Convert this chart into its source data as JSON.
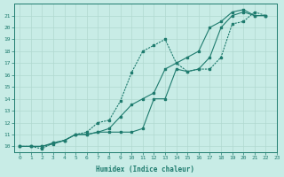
{
  "xlabel": "Humidex (Indice chaleur)",
  "xlim": [
    -0.5,
    23
  ],
  "ylim": [
    9.5,
    22
  ],
  "xticks": [
    0,
    1,
    2,
    3,
    4,
    5,
    6,
    7,
    8,
    9,
    10,
    11,
    12,
    13,
    14,
    15,
    16,
    17,
    18,
    19,
    20,
    21,
    22,
    23
  ],
  "yticks": [
    10,
    11,
    12,
    13,
    14,
    15,
    16,
    17,
    18,
    19,
    20,
    21
  ],
  "bg_color": "#c8ece6",
  "line_color": "#1e7b6e",
  "grid_color": "#b0d8d0",
  "line1_x": [
    0,
    1,
    2,
    3,
    4,
    5,
    6,
    7,
    8,
    9,
    10,
    11,
    12,
    13,
    14,
    15,
    16,
    17,
    18,
    19,
    20,
    21,
    22
  ],
  "line1_y": [
    10,
    10,
    10,
    10.3,
    10.5,
    11,
    11,
    11.2,
    11.2,
    11.2,
    11.2,
    11.5,
    14,
    14,
    16.5,
    16.3,
    16.5,
    17.5,
    20,
    21,
    21.3,
    21,
    21
  ],
  "line2_x": [
    0,
    1,
    2,
    3,
    4,
    5,
    6,
    7,
    8,
    9,
    10,
    11,
    12,
    13,
    14,
    15,
    16,
    17,
    18,
    19,
    20,
    21,
    22
  ],
  "line2_y": [
    10,
    10,
    9.8,
    10.3,
    10.5,
    11,
    11.2,
    12,
    12.2,
    13.8,
    16.2,
    18,
    18.5,
    19,
    17,
    16.3,
    16.5,
    16.5,
    17.5,
    20.3,
    20.5,
    21.3,
    21
  ],
  "line3_x": [
    0,
    1,
    2,
    3,
    4,
    5,
    6,
    7,
    8,
    9,
    10,
    11,
    12,
    13,
    14,
    15,
    16,
    17,
    18,
    19,
    20,
    21,
    22
  ],
  "line3_y": [
    10,
    10,
    10,
    10.2,
    10.5,
    11,
    11,
    11.2,
    11.5,
    12.5,
    13.5,
    14,
    14.5,
    16.5,
    17,
    17.5,
    18,
    20,
    20.5,
    21.3,
    21.5,
    21,
    21
  ]
}
